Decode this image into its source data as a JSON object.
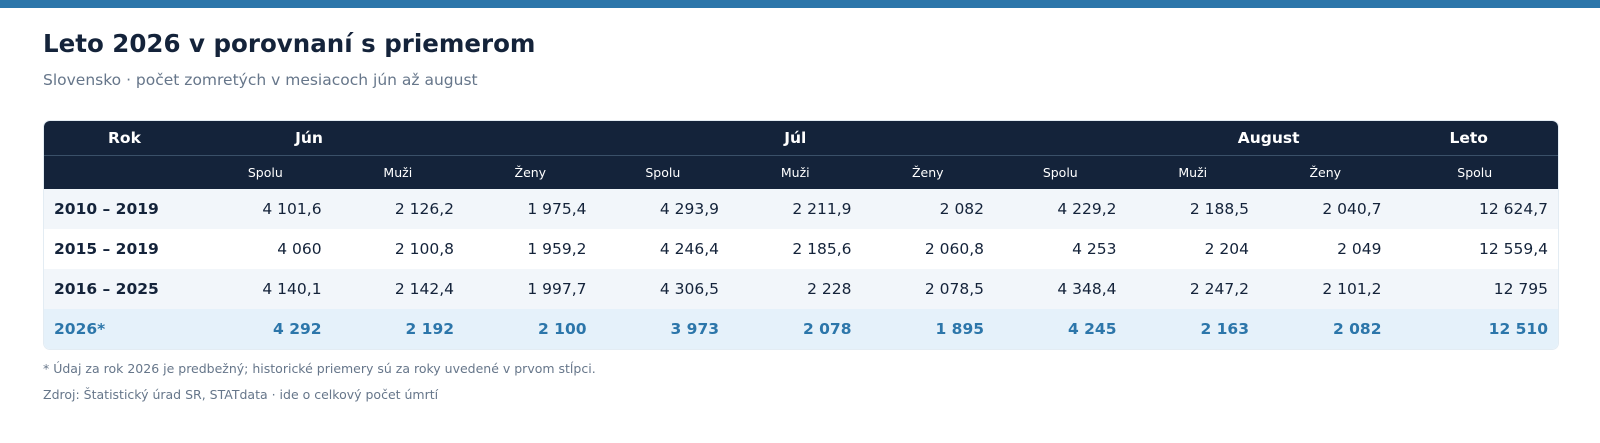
{
  "title": "Leto 2026 v porovnaní s priemerom",
  "subtitle": "Slovensko · počet zomretých v mesiacoch jún až august",
  "table": {
    "groups": [
      "Rok",
      "Jún",
      "Júl",
      "August",
      "Leto"
    ],
    "subheaders": [
      "",
      "Spolu",
      "Muži",
      "Ženy",
      "Spolu",
      "Muži",
      "Ženy",
      "Spolu",
      "Muži",
      "Ženy",
      "Spolu"
    ],
    "rows": [
      [
        "2010 – 2019",
        "4 101,6",
        "2 126,2",
        "1 975,4",
        "4 293,9",
        "2 211,9",
        "2 082",
        "4 229,2",
        "2 188,5",
        "2 040,7",
        "12 624,7"
      ],
      [
        "2015 – 2019",
        "4 060",
        "2 100,8",
        "1 959,2",
        "4 246,4",
        "2 185,6",
        "2 060,8",
        "4 253",
        "2 204",
        "2 049",
        "12 559,4"
      ],
      [
        "2016 – 2025",
        "4 140,1",
        "2 142,4",
        "1 997,7",
        "4 306,5",
        "2 228",
        "2 078,5",
        "4 348,4",
        "2 247,2",
        "2 101,2",
        "12 795"
      ],
      [
        "2026*",
        "4 292",
        "2 192",
        "2 100",
        "3 973",
        "2 078",
        "1 895",
        "4 245",
        "2 163",
        "2 082",
        "12 510"
      ]
    ]
  },
  "footnotes": [
    "* Údaj za rok 2026 je predbežný; historické priemery sú za roky uvedené v prvom stĺpci.",
    "Zdroj: Štatistický úrad SR, STATdata · ide o celkový počet úmrtí"
  ],
  "colors": {
    "header_bg": "#14233a",
    "accent": "#2c76aa",
    "row_alt": "#f2f6fa",
    "highlight_bg": "#e5f1fa"
  }
}
